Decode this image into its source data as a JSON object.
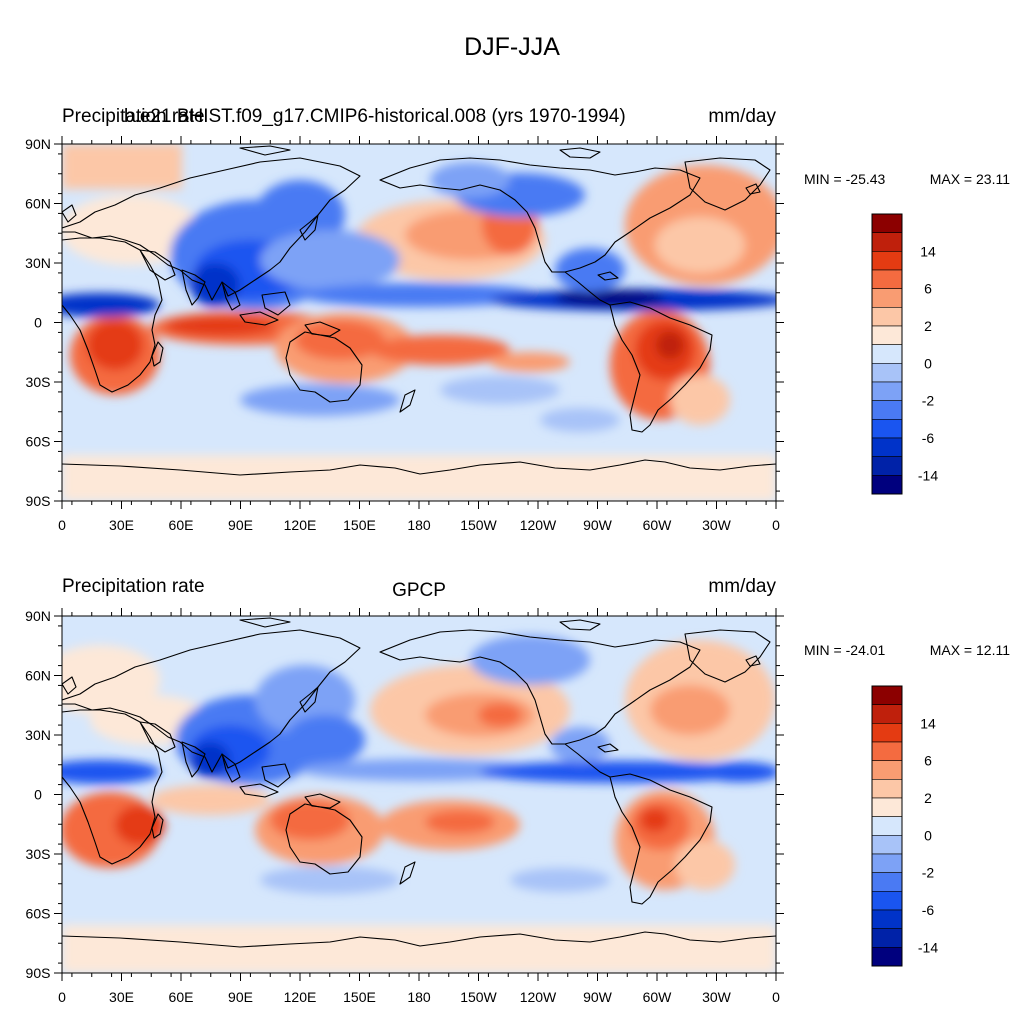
{
  "figure": {
    "title": "DJF-JJA"
  },
  "palette": {
    "neg": [
      "#00007e",
      "#0022a8",
      "#0033c9",
      "#1a55f0",
      "#4a7af3",
      "#7da2f6",
      "#a8c3f8",
      "#d6e7fc"
    ],
    "pos": [
      "#fde8d8",
      "#fcc7a7",
      "#f99c72",
      "#f46b40",
      "#e43b12",
      "#bf200c",
      "#8c0000"
    ],
    "coast": "#000000",
    "frame": "#000000"
  },
  "colorbar_labels": [
    "14",
    "6",
    "2",
    "0",
    "-2",
    "-6",
    "-14"
  ],
  "lon_labels": [
    "0",
    "30E",
    "60E",
    "90E",
    "120E",
    "150E",
    "180",
    "150W",
    "120W",
    "90W",
    "60W",
    "30W",
    "0"
  ],
  "lat_labels": [
    "90N",
    "60N",
    "30N",
    "0",
    "30S",
    "60S",
    "90S"
  ],
  "panels": [
    {
      "left_title_a": "Precipitation rate",
      "left_title_b": "b.e21.BHIST.f09_g17.CMIP6-historical.008 (yrs 1970-1994)",
      "center_title": "",
      "units": "mm/day",
      "min_label": "MIN = -25.43",
      "max_label": "MAX =  23.11"
    },
    {
      "left_title_a": "Precipitation rate",
      "left_title_b": "",
      "center_title": "GPCP",
      "units": "mm/day",
      "min_label": "MIN = -24.01",
      "max_label": "MAX =  12.11"
    }
  ]
}
